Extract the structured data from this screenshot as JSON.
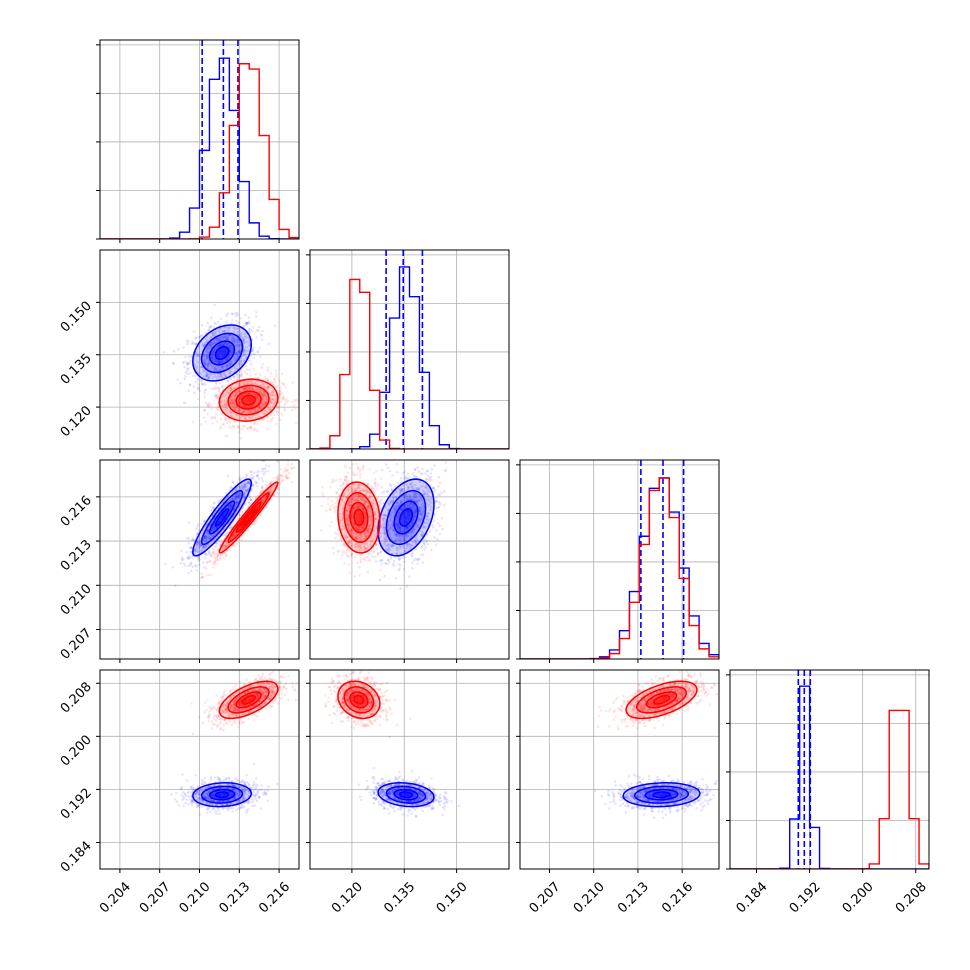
{
  "chart_data": {
    "type": "corner",
    "n_params": 4,
    "ranges": [
      [
        0.2025,
        0.2175
      ],
      [
        0.108,
        0.165
      ],
      [
        0.205,
        0.2185
      ],
      [
        0.18,
        0.21
      ]
    ],
    "ticks": [
      {
        "values": [
          0.204,
          0.207,
          0.21,
          0.213,
          0.216
        ],
        "labels": [
          "0.204",
          "0.207",
          "0.210",
          "0.213",
          "0.216"
        ]
      },
      {
        "values": [
          0.12,
          0.135,
          0.15
        ],
        "labels": [
          "0.120",
          "0.135",
          "0.150"
        ]
      },
      {
        "values": [
          0.207,
          0.21,
          0.213,
          0.216
        ],
        "labels": [
          "0.207",
          "0.210",
          "0.213",
          "0.216"
        ]
      },
      {
        "values": [
          0.184,
          0.192,
          0.2,
          0.208
        ],
        "labels": [
          "0.184",
          "0.192",
          "0.200",
          "0.208"
        ]
      }
    ],
    "grid": true,
    "series": [
      {
        "color": "#0000ff",
        "mean": [
          0.2117,
          0.1355,
          0.2146,
          0.1912
        ],
        "std": [
          0.0011,
          0.004,
          0.0013,
          0.0009
        ],
        "corr": [
          [
            1,
            0.3,
            0.9,
            0.1
          ],
          [
            0.3,
            1,
            0.35,
            -0.2
          ],
          [
            0.9,
            0.35,
            1,
            0.1
          ],
          [
            0.1,
            -0.2,
            0.1,
            1
          ]
        ],
        "quantiles": [
          [
            0.2102,
            0.2118,
            0.2129
          ],
          [
            0.1298,
            0.1347,
            0.1402
          ],
          [
            0.2132,
            0.2147,
            0.2161
          ],
          [
            0.1903,
            0.1912,
            0.1921
          ]
        ]
      },
      {
        "color": "#ff0000",
        "mean": [
          0.2137,
          0.122,
          0.2146,
          0.2055
        ],
        "std": [
          0.0011,
          0.003,
          0.0012,
          0.0014
        ],
        "corr": [
          [
            1,
            0.1,
            0.97,
            0.6
          ],
          [
            0.1,
            1,
            -0.1,
            -0.2
          ],
          [
            0.97,
            -0.1,
            1,
            0.55
          ],
          [
            0.6,
            -0.2,
            0.55,
            1
          ]
        ],
        "quantiles": []
      }
    ]
  }
}
